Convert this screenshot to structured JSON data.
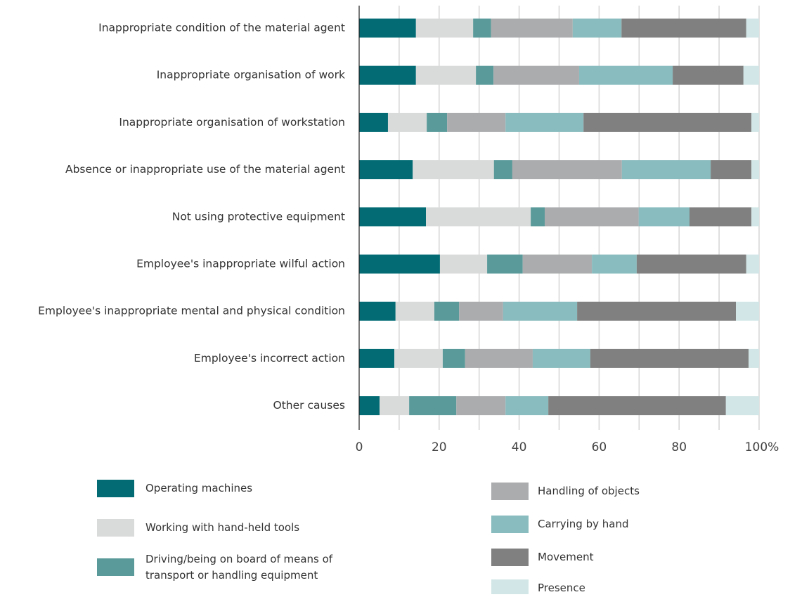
{
  "chart_data": {
    "type": "bar",
    "orientation": "horizontal",
    "stacked": true,
    "categories": [
      "Inappropriate condition of the material agent",
      "Inappropriate organisation of work",
      "Inappropriate organisation of workstation",
      "Absence or inappropriate use of the material agent",
      "Not using protective equipment",
      "Employee's inappropriate wilful action",
      "Employee's inappropriate mental and physical condition",
      "Employee's incorrect action",
      "Other causes"
    ],
    "series": [
      {
        "name": "Operating machines",
        "color": "#026b74",
        "values": [
          14.2,
          14.2,
          7.2,
          13.4,
          16.7,
          20.2,
          9.1,
          8.8,
          5.1
        ]
      },
      {
        "name": "Working with hand-held tools",
        "color": "#d9dbda",
        "values": [
          14.3,
          15.0,
          9.7,
          20.3,
          26.2,
          11.8,
          9.7,
          12.1,
          7.4
        ]
      },
      {
        "name": "Driving/being on board of means of transport or handling equipment",
        "color": "#5a9a9a",
        "values": [
          4.5,
          4.4,
          5.1,
          4.6,
          3.5,
          8.9,
          6.2,
          5.6,
          11.8
        ]
      },
      {
        "name": "Handling of objects",
        "color": "#abacae",
        "values": [
          20.4,
          21.4,
          14.6,
          27.4,
          23.5,
          17.3,
          11.0,
          16.9,
          12.3
        ]
      },
      {
        "name": "Carrying by hand",
        "color": "#88bcbe",
        "values": [
          12.2,
          23.4,
          19.5,
          22.2,
          12.7,
          11.2,
          18.5,
          14.4,
          10.7
        ]
      },
      {
        "name": "Movement",
        "color": "#808080",
        "values": [
          31.2,
          17.7,
          42.0,
          10.2,
          15.5,
          27.4,
          39.7,
          39.6,
          44.4
        ]
      },
      {
        "name": "Presence",
        "color": "#d3e6e7",
        "values": [
          3.2,
          3.9,
          1.9,
          1.9,
          1.9,
          3.2,
          5.8,
          2.6,
          8.3
        ]
      }
    ],
    "xlim": [
      0,
      100
    ],
    "xticks": [
      0,
      20,
      40,
      60,
      80,
      {
        "value": 100,
        "label": "100%"
      }
    ],
    "minor_xticks": [
      10,
      30,
      50,
      70,
      90
    ],
    "grid": true
  }
}
